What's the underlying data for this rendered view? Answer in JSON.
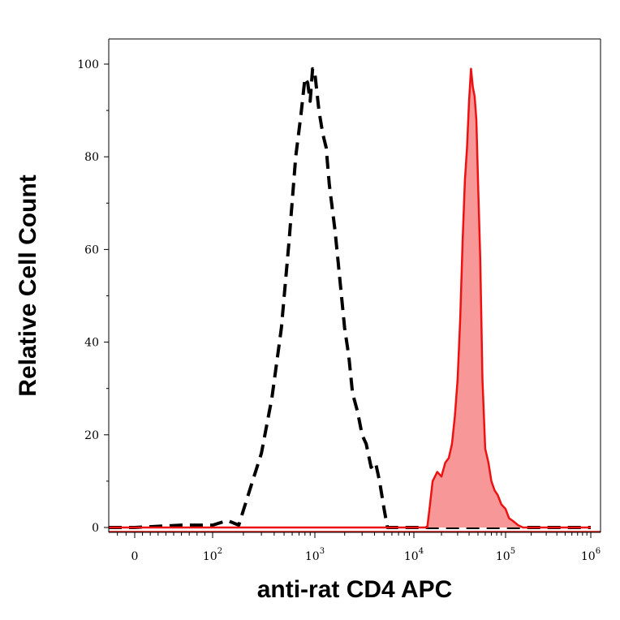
{
  "chart_data": {
    "type": "area",
    "title": "",
    "xlabel": "anti-rat CD4 APC",
    "ylabel": "Relative Cell Count",
    "x_scale": "biexponential",
    "xlim": [
      -30,
      1000000
    ],
    "ylim": [
      0,
      100
    ],
    "y_ticks": [
      "0",
      "20",
      "40",
      "60",
      "80",
      "100"
    ],
    "x_ticks": [
      {
        "value": 0,
        "base": "0",
        "exp": ""
      },
      {
        "value": 100,
        "base": "10",
        "exp": "2"
      },
      {
        "value": 1000,
        "base": "10",
        "exp": "3"
      },
      {
        "value": 10000,
        "base": "10",
        "exp": "4"
      },
      {
        "value": 100000,
        "base": "10",
        "exp": "5"
      },
      {
        "value": 1000000,
        "base": "10",
        "exp": "6"
      }
    ],
    "grid": false,
    "legend": "none",
    "series": [
      {
        "style": "dashed-black-outline",
        "color": "#000000",
        "x": [
          -30,
          0,
          60,
          100,
          140,
          180,
          230,
          300,
          380,
          470,
          560,
          650,
          730,
          800,
          850,
          900,
          950,
          1000,
          1100,
          1200,
          1300,
          1400,
          1600,
          1800,
          2000,
          2200,
          2400,
          2700,
          3000,
          3300,
          3700,
          4100,
          4500,
          5000,
          5400,
          6000,
          10000,
          100000,
          1000000
        ],
        "y": [
          0,
          0,
          0.5,
          0.5,
          1.5,
          0.5,
          8,
          16,
          28,
          43,
          62,
          80,
          89,
          97,
          96,
          92,
          99,
          98,
          90,
          85,
          82,
          74,
          64,
          53,
          43,
          37,
          29,
          25,
          20,
          18,
          13,
          14,
          10,
          4,
          0,
          0,
          0,
          0,
          0
        ]
      },
      {
        "style": "red-filled",
        "color": "#ee1111",
        "fill": "#f79797",
        "x": [
          -30,
          10000,
          14000,
          15000,
          16000,
          18000,
          20000,
          22000,
          24000,
          26000,
          28000,
          30000,
          32000,
          34000,
          36000,
          38000,
          40000,
          42000,
          44000,
          46000,
          48000,
          50000,
          53000,
          56000,
          60000,
          65000,
          70000,
          76000,
          82000,
          90000,
          100000,
          110000,
          120000,
          130000,
          140000,
          160000,
          1000000
        ],
        "y": [
          0,
          0,
          0,
          5,
          10,
          12,
          11,
          14,
          15,
          18,
          24,
          32,
          45,
          62,
          75,
          82,
          92,
          99,
          95,
          93,
          88,
          75,
          58,
          32,
          17,
          14,
          10,
          8,
          7,
          5,
          4,
          2,
          1.5,
          1,
          0.5,
          0,
          0
        ]
      }
    ]
  }
}
